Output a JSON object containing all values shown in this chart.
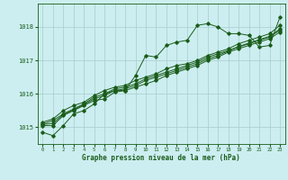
{
  "title": "Graphe pression niveau de la mer (hPa)",
  "bg_color": "#cceef0",
  "grid_color": "#a8cccc",
  "line_color": "#1a5c1a",
  "x_ticks": [
    0,
    1,
    2,
    3,
    4,
    5,
    6,
    7,
    8,
    9,
    10,
    11,
    12,
    13,
    14,
    15,
    16,
    17,
    18,
    19,
    20,
    21,
    22,
    23
  ],
  "y_ticks": [
    1015,
    1016,
    1017,
    1018
  ],
  "ylim": [
    1014.5,
    1018.7
  ],
  "xlim": [
    -0.5,
    23.5
  ],
  "series": [
    [
      1014.85,
      1014.75,
      1015.05,
      1015.4,
      1015.5,
      1015.7,
      1016.0,
      1016.1,
      1016.1,
      1016.55,
      1017.15,
      1017.1,
      1017.45,
      1017.55,
      1017.6,
      1018.05,
      1018.1,
      1018.0,
      1017.8,
      1017.8,
      1017.75,
      1017.4,
      1017.45,
      1018.3
    ],
    [
      1015.05,
      1015.05,
      1015.35,
      1015.5,
      1015.65,
      1015.8,
      1015.85,
      1016.05,
      1016.1,
      1016.2,
      1016.3,
      1016.4,
      1016.55,
      1016.65,
      1016.75,
      1016.85,
      1017.0,
      1017.1,
      1017.25,
      1017.35,
      1017.45,
      1017.55,
      1017.65,
      1017.85
    ],
    [
      1015.1,
      1015.2,
      1015.4,
      1015.55,
      1015.7,
      1015.9,
      1016.0,
      1016.15,
      1016.2,
      1016.3,
      1016.45,
      1016.55,
      1016.65,
      1016.75,
      1016.85,
      1016.95,
      1017.1,
      1017.2,
      1017.3,
      1017.4,
      1017.5,
      1017.6,
      1017.7,
      1017.95
    ],
    [
      1015.15,
      1015.25,
      1015.5,
      1015.65,
      1015.75,
      1015.95,
      1016.1,
      1016.2,
      1016.25,
      1016.4,
      1016.5,
      1016.6,
      1016.75,
      1016.85,
      1016.9,
      1017.0,
      1017.15,
      1017.25,
      1017.35,
      1017.5,
      1017.6,
      1017.7,
      1017.8,
      1018.05
    ],
    [
      1015.08,
      1015.12,
      1015.38,
      1015.52,
      1015.68,
      1015.85,
      1015.95,
      1016.1,
      1016.15,
      1016.25,
      1016.4,
      1016.5,
      1016.6,
      1016.7,
      1016.8,
      1016.9,
      1017.05,
      1017.15,
      1017.28,
      1017.42,
      1017.52,
      1017.62,
      1017.72,
      1017.9
    ]
  ]
}
